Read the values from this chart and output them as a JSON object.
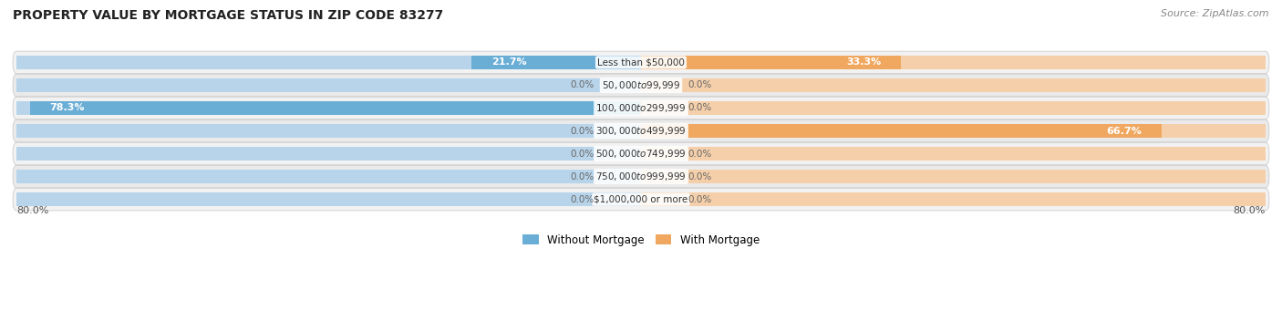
{
  "title": "PROPERTY VALUE BY MORTGAGE STATUS IN ZIP CODE 83277",
  "source": "Source: ZipAtlas.com",
  "categories": [
    "Less than $50,000",
    "$50,000 to $99,999",
    "$100,000 to $299,999",
    "$300,000 to $499,999",
    "$500,000 to $749,999",
    "$750,000 to $999,999",
    "$1,000,000 or more"
  ],
  "without_mortgage": [
    21.7,
    0.0,
    78.3,
    0.0,
    0.0,
    0.0,
    0.0
  ],
  "with_mortgage": [
    33.3,
    0.0,
    0.0,
    66.7,
    0.0,
    0.0,
    0.0
  ],
  "color_without": "#6aaed6",
  "color_with": "#f0a860",
  "color_without_light": "#b8d4ea",
  "color_with_light": "#f5cfaa",
  "axis_left_label": "80.0%",
  "axis_right_label": "80.0%",
  "legend_without": "Without Mortgage",
  "legend_with": "With Mortgage",
  "title_fontsize": 10,
  "source_fontsize": 8,
  "bar_height": 0.62,
  "max_val": 80.0,
  "stub_val": 5.0
}
